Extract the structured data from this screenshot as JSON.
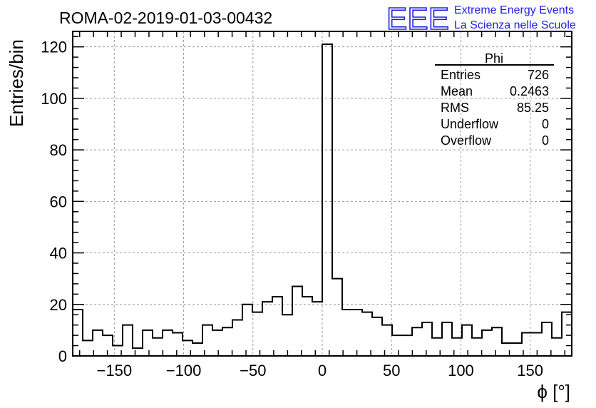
{
  "colors": {
    "histogram": "#000000",
    "grid": "#9a9a9a",
    "logo": "#2020e0"
  },
  "logo": {
    "mark": "EEE",
    "line1": "Extreme Energy Events",
    "line2": "La Scienza nelle Scuole"
  },
  "chart_data": {
    "type": "bar",
    "histogram": true,
    "title": "ROMA-02-2019-01-03-00432",
    "xlabel": "ϕ [°]",
    "ylabel": "Entries/bin",
    "xlim": [
      -180,
      180
    ],
    "ylim": [
      0,
      126
    ],
    "grid": true,
    "x_ticks": [
      -150,
      -100,
      -50,
      0,
      50,
      100,
      150
    ],
    "x_tick_labels": [
      "−150",
      "−100",
      "−50",
      "0",
      "50",
      "100",
      "150"
    ],
    "y_ticks": [
      0,
      20,
      40,
      60,
      80,
      100,
      120
    ],
    "y_tick_labels": [
      "0",
      "20",
      "40",
      "60",
      "80",
      "100",
      "120"
    ],
    "bin_width": 7.2,
    "bin_edges_start": -180,
    "values": [
      18,
      6,
      10,
      8,
      4,
      12,
      3,
      10,
      7,
      10,
      9,
      6,
      5,
      12,
      10,
      11,
      14,
      20,
      17,
      21,
      23,
      16,
      27,
      23,
      21,
      121,
      30,
      18,
      18,
      17,
      15,
      12,
      8,
      8,
      11,
      13,
      7,
      13,
      7,
      12,
      7,
      10,
      11,
      5,
      5,
      9,
      9,
      13,
      7,
      17
    ],
    "stats_box": {
      "header": "Phi",
      "placement": "top-right",
      "rows": [
        {
          "label": "Entries",
          "value": "726"
        },
        {
          "label": "Mean",
          "value": "0.2463"
        },
        {
          "label": "RMS",
          "value": "85.25"
        },
        {
          "label": "Underflow",
          "value": "0"
        },
        {
          "label": "Overflow",
          "value": "0"
        }
      ]
    }
  }
}
